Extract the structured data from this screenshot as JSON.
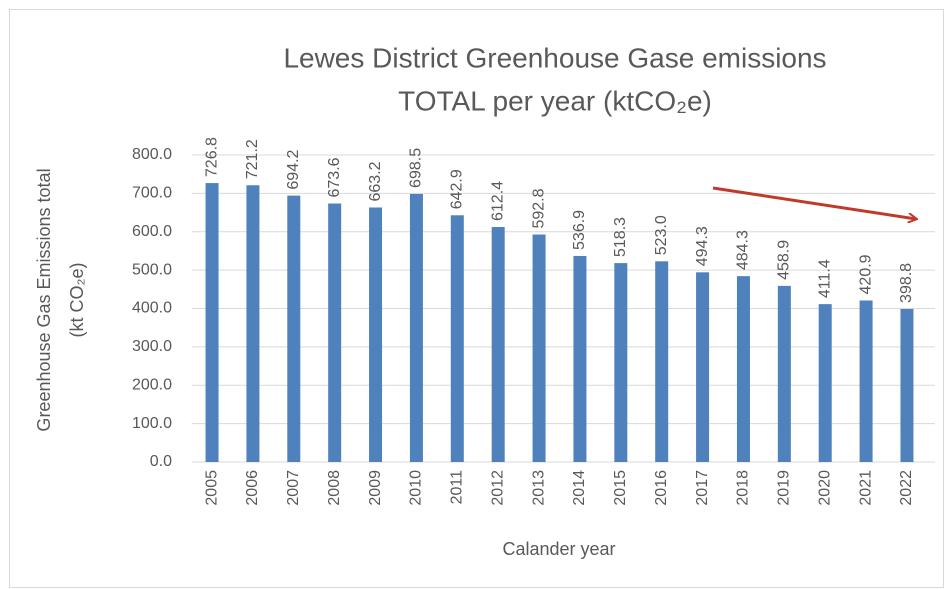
{
  "chart_data": {
    "type": "bar",
    "title": [
      "Lewes District Greenhouse Gase emissions",
      "TOTAL per year (ktCO₂e)"
    ],
    "y_label": [
      "Greenhouse Gas Emissions total",
      "(kt CO₂e)"
    ],
    "x_label": "Calander year",
    "categories": [
      "2005",
      "2006",
      "2007",
      "2008",
      "2009",
      "2010",
      "2011",
      "2012",
      "2013",
      "2014",
      "2015",
      "2016",
      "2017",
      "2018",
      "2019",
      "2020",
      "2021",
      "2022"
    ],
    "values": [
      726.8,
      721.2,
      694.2,
      673.6,
      663.2,
      698.5,
      642.9,
      612.4,
      592.8,
      536.9,
      518.3,
      523.0,
      494.3,
      484.3,
      458.9,
      411.4,
      420.9,
      398.8
    ],
    "value_labels": [
      "726.8",
      "721.2",
      "694.2",
      "673.6",
      "663.2",
      "698.5",
      "642.9",
      "612.4",
      "592.8",
      "536.9",
      "518.3",
      "523.0",
      "494.3",
      "484.3",
      "458.9",
      "411.4",
      "420.9",
      "398.8"
    ],
    "color": "#4f81bd",
    "ylim": [
      0,
      800
    ],
    "yticks": [
      {
        "value": 0,
        "label": "0.0"
      },
      {
        "value": 100,
        "label": "100.0"
      },
      {
        "value": 200,
        "label": "200.0"
      },
      {
        "value": 300,
        "label": "300.0"
      },
      {
        "value": 400,
        "label": "400.0"
      },
      {
        "value": 500,
        "label": "500.0"
      },
      {
        "value": 600,
        "label": "600.0"
      },
      {
        "value": 700,
        "label": "700.0"
      },
      {
        "value": 800,
        "label": "800.0"
      }
    ],
    "grid": true
  }
}
